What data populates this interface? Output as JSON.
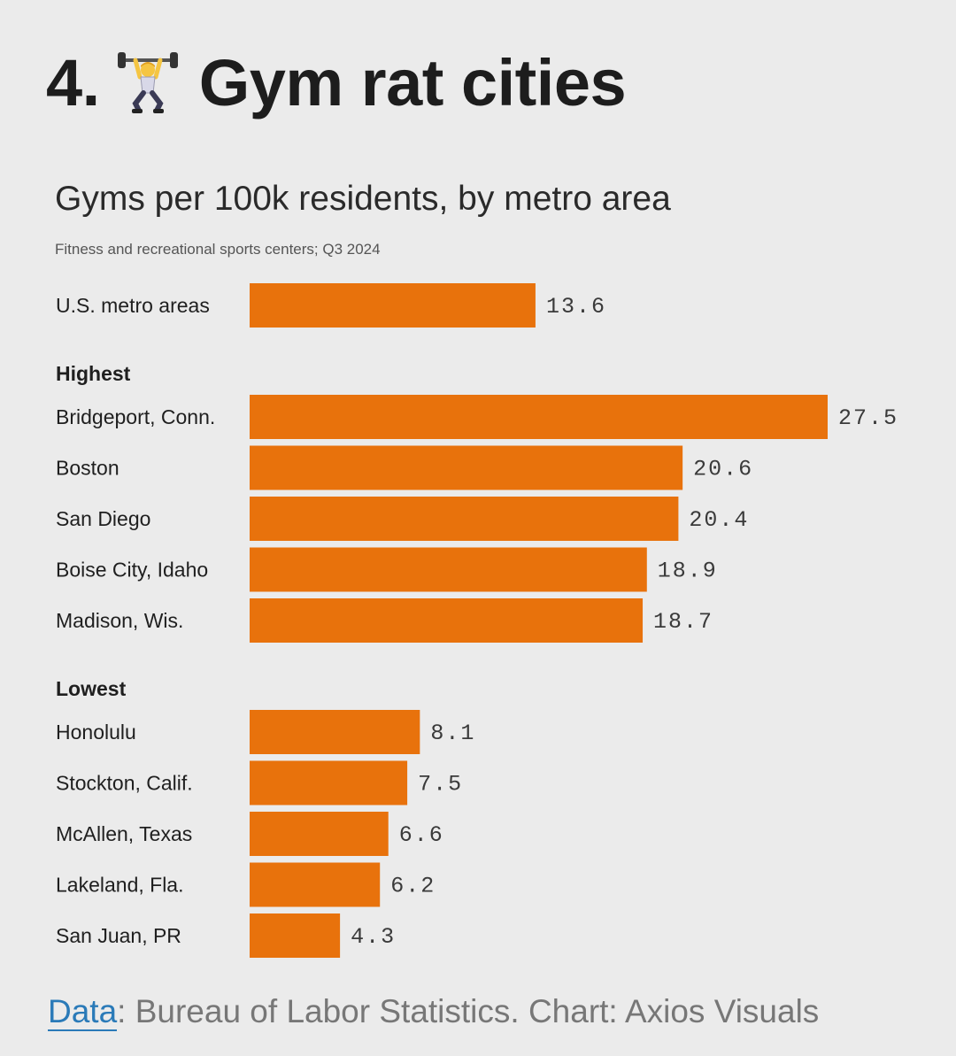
{
  "headline": {
    "number": "4.",
    "emoji_icon": "weightlifter-icon",
    "title": "Gym rat cities"
  },
  "chart_data": {
    "type": "bar",
    "orientation": "horizontal",
    "title": "Gyms per 100k residents, by metro area",
    "subtitle": "Fitness and recreational sports centers; Q3 2024",
    "xlabel": "",
    "ylabel": "",
    "xlim": [
      0,
      27.5
    ],
    "bar_color": "#e8720c",
    "groups": [
      {
        "label": "",
        "categories": [
          "U.S. metro areas"
        ],
        "values": [
          13.6
        ],
        "value_labels": [
          "13.6"
        ]
      },
      {
        "label": "Highest",
        "categories": [
          "Bridgeport, Conn.",
          "Boston",
          "San Diego",
          "Boise City, Idaho",
          "Madison, Wis."
        ],
        "values": [
          27.5,
          20.6,
          20.4,
          18.9,
          18.7
        ],
        "value_labels": [
          "27.5",
          "20.6",
          "20.4",
          "18.9",
          "18.7"
        ]
      },
      {
        "label": "Lowest",
        "categories": [
          "Honolulu",
          "Stockton, Calif.",
          "McAllen, Texas",
          "Lakeland, Fla.",
          "San Juan, PR"
        ],
        "values": [
          8.1,
          7.5,
          6.6,
          6.2,
          4.3
        ],
        "value_labels": [
          "8.1",
          "7.5",
          "6.6",
          "6.2",
          "4.3"
        ]
      }
    ]
  },
  "footer": {
    "data_link_label": "Data",
    "source_text": ": Bureau of Labor Statistics. Chart: Axios Visuals"
  }
}
